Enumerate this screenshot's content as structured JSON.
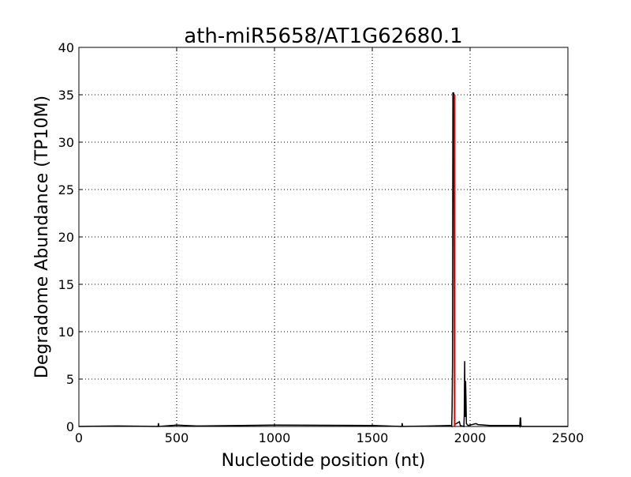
{
  "chart_data": {
    "type": "line",
    "title": "ath-miR5658/AT1G62680.1",
    "xlabel": "Nucleotide position (nt)",
    "ylabel": "Degradome Abundance (TP10M)",
    "xlim": [
      0,
      2500
    ],
    "ylim": [
      0,
      40
    ],
    "xticks": [
      0,
      500,
      1000,
      1500,
      2000,
      2500
    ],
    "yticks": [
      0,
      5,
      10,
      15,
      20,
      25,
      30,
      35,
      40
    ],
    "grid": true,
    "series": [
      {
        "color": "#000000",
        "points": [
          [
            0,
            0
          ],
          [
            200,
            0.05
          ],
          [
            405,
            0
          ],
          [
            407,
            0.35
          ],
          [
            409,
            0
          ],
          [
            500,
            0.15
          ],
          [
            600,
            0.05
          ],
          [
            1000,
            0.15
          ],
          [
            1500,
            0.1
          ],
          [
            1651,
            0
          ],
          [
            1653,
            0.35
          ],
          [
            1655,
            0
          ],
          [
            1800,
            0.05
          ],
          [
            1900,
            0.1
          ],
          [
            1906,
            0
          ],
          [
            1908,
            2.0
          ],
          [
            1910,
            6.5
          ],
          [
            1912,
            35.2
          ],
          [
            1916,
            35.2
          ],
          [
            1918,
            18.7
          ],
          [
            1920,
            0.2
          ],
          [
            1930,
            0.3
          ],
          [
            1945,
            0.5
          ],
          [
            1950,
            0.1
          ],
          [
            1968,
            0
          ],
          [
            1970,
            1.2
          ],
          [
            1972,
            6.9
          ],
          [
            1974,
            1.0
          ],
          [
            1977,
            4.8
          ],
          [
            1979,
            2.8
          ],
          [
            1981,
            0.3
          ],
          [
            1990,
            0.1
          ],
          [
            2030,
            0.3
          ],
          [
            2040,
            0.2
          ],
          [
            2100,
            0.1
          ],
          [
            2250,
            0.1
          ],
          [
            2254,
            0
          ],
          [
            2256,
            0.9
          ],
          [
            2258,
            0.9
          ],
          [
            2260,
            0.1
          ],
          [
            2262,
            0
          ],
          [
            2500,
            0
          ]
        ]
      }
    ],
    "vline": {
      "x": 1921,
      "ymax": 35,
      "color": "#ff0000"
    }
  }
}
